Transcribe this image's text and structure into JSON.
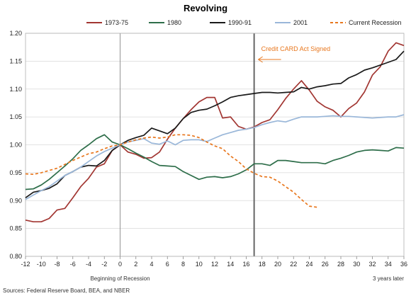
{
  "chart_data": {
    "type": "line",
    "title": "Revolving",
    "xlabel": "",
    "ylabel": "",
    "xlim": [
      -12,
      36
    ],
    "ylim": [
      0.8,
      1.2
    ],
    "x_ticks": [
      -12,
      -10,
      -8,
      -6,
      -4,
      -2,
      0,
      2,
      4,
      6,
      8,
      10,
      12,
      14,
      16,
      18,
      20,
      22,
      24,
      26,
      28,
      30,
      32,
      34,
      36
    ],
    "y_ticks": [
      0.8,
      0.85,
      0.9,
      0.95,
      1.0,
      1.05,
      1.1,
      1.15,
      1.2
    ],
    "y_tick_labels": [
      "0.80",
      "0.85",
      "0.90",
      "0.95",
      "1.00",
      "1.05",
      "1.10",
      "1.15",
      "1.20"
    ],
    "grid": "horizontal",
    "legend_position": "top",
    "x_start_note": "Beginning of Recession",
    "x_end_note": "3 years later",
    "source": "Sources: Federal Reserve Board, BEA, and NBER",
    "annotation": {
      "text": "Credit CARD Act Signed",
      "x": 17,
      "color": "#e8771e"
    },
    "reference_lines": [
      {
        "x": 0,
        "color": "#888888"
      },
      {
        "x": 17,
        "color": "#666666"
      }
    ],
    "series": [
      {
        "name": "1973-75",
        "color": "#a23632",
        "style": "solid",
        "x": [
          -12,
          -11,
          -10,
          -9,
          -8,
          -7,
          -6,
          -5,
          -4,
          -3,
          -2,
          -1,
          0,
          1,
          2,
          3,
          4,
          5,
          6,
          7,
          8,
          9,
          10,
          11,
          12,
          13,
          14,
          15,
          16,
          17,
          18,
          19,
          20,
          21,
          22,
          23,
          24,
          25,
          26,
          27,
          28,
          29,
          30,
          31,
          32,
          33,
          34,
          35,
          36
        ],
        "y": [
          0.865,
          0.862,
          0.862,
          0.868,
          0.883,
          0.886,
          0.905,
          0.925,
          0.94,
          0.96,
          0.966,
          0.99,
          1.0,
          0.987,
          0.983,
          0.976,
          0.977,
          0.987,
          1.01,
          1.03,
          1.047,
          1.063,
          1.077,
          1.085,
          1.085,
          1.048,
          1.05,
          1.033,
          1.028,
          1.032,
          1.04,
          1.045,
          1.063,
          1.083,
          1.1,
          1.115,
          1.098,
          1.078,
          1.068,
          1.062,
          1.05,
          1.065,
          1.075,
          1.095,
          1.125,
          1.14,
          1.168,
          1.183,
          1.178
        ]
      },
      {
        "name": "1980",
        "color": "#2e6e4a",
        "style": "solid",
        "x": [
          -12,
          -11,
          -10,
          -9,
          -8,
          -7,
          -6,
          -5,
          -4,
          -3,
          -2,
          -1,
          0,
          1,
          2,
          3,
          4,
          5,
          6,
          7,
          8,
          9,
          10,
          11,
          12,
          13,
          14,
          15,
          16,
          17,
          18,
          19,
          20,
          21,
          22,
          23,
          24,
          25,
          26,
          27,
          28,
          29,
          30,
          31,
          32,
          33,
          34,
          35,
          36
        ],
        "y": [
          0.92,
          0.921,
          0.928,
          0.938,
          0.95,
          0.962,
          0.975,
          0.99,
          1.0,
          1.011,
          1.018,
          1.005,
          1.0,
          0.993,
          0.985,
          0.978,
          0.97,
          0.963,
          0.962,
          0.961,
          0.952,
          0.945,
          0.938,
          0.942,
          0.943,
          0.941,
          0.943,
          0.948,
          0.955,
          0.966,
          0.966,
          0.963,
          0.972,
          0.972,
          0.97,
          0.968,
          0.968,
          0.968,
          0.966,
          0.972,
          0.976,
          0.981,
          0.987,
          0.99,
          0.991,
          0.99,
          0.989,
          0.995,
          0.994
        ]
      },
      {
        "name": "1990-91",
        "color": "#1a1a1a",
        "style": "solid",
        "x": [
          -12,
          -11,
          -10,
          -9,
          -8,
          -7,
          -6,
          -5,
          -4,
          -3,
          -2,
          -1,
          0,
          1,
          2,
          3,
          4,
          5,
          6,
          7,
          8,
          9,
          10,
          11,
          12,
          13,
          14,
          15,
          16,
          17,
          18,
          19,
          20,
          21,
          22,
          23,
          24,
          25,
          26,
          27,
          28,
          29,
          30,
          31,
          32,
          33,
          34,
          35,
          36
        ],
        "y": [
          0.905,
          0.915,
          0.918,
          0.922,
          0.93,
          0.945,
          0.952,
          0.96,
          0.963,
          0.962,
          0.972,
          0.99,
          1.0,
          1.008,
          1.013,
          1.017,
          1.03,
          1.025,
          1.02,
          1.03,
          1.047,
          1.058,
          1.062,
          1.064,
          1.07,
          1.077,
          1.085,
          1.088,
          1.09,
          1.092,
          1.094,
          1.094,
          1.093,
          1.094,
          1.095,
          1.103,
          1.1,
          1.104,
          1.106,
          1.109,
          1.11,
          1.12,
          1.126,
          1.134,
          1.138,
          1.143,
          1.148,
          1.153,
          1.168
        ]
      },
      {
        "name": "2001",
        "color": "#9ab7d9",
        "style": "solid",
        "x": [
          -12,
          -11,
          -10,
          -9,
          -8,
          -7,
          -6,
          -5,
          -4,
          -3,
          -2,
          -1,
          0,
          1,
          2,
          3,
          4,
          5,
          6,
          7,
          8,
          9,
          10,
          11,
          12,
          13,
          14,
          15,
          16,
          17,
          18,
          19,
          20,
          21,
          22,
          23,
          24,
          25,
          26,
          27,
          28,
          29,
          30,
          31,
          32,
          33,
          34,
          35,
          36
        ],
        "y": [
          0.902,
          0.91,
          0.918,
          0.925,
          0.935,
          0.945,
          0.952,
          0.96,
          0.97,
          0.98,
          0.988,
          0.994,
          1.0,
          1.005,
          1.008,
          1.011,
          1.003,
          1.001,
          1.007,
          1.0,
          1.008,
          1.009,
          1.009,
          1.006,
          1.012,
          1.018,
          1.022,
          1.026,
          1.028,
          1.031,
          1.036,
          1.04,
          1.043,
          1.041,
          1.046,
          1.05,
          1.05,
          1.05,
          1.051,
          1.052,
          1.051,
          1.051,
          1.05,
          1.049,
          1.048,
          1.049,
          1.05,
          1.05,
          1.054
        ]
      },
      {
        "name": "Current Recession",
        "color": "#e8771e",
        "style": "dashed",
        "x": [
          -12,
          -11,
          -10,
          -9,
          -8,
          -7,
          -6,
          -5,
          -4,
          -3,
          -2,
          -1,
          0,
          1,
          2,
          3,
          4,
          5,
          6,
          7,
          8,
          9,
          10,
          11,
          12,
          13,
          14,
          15,
          16,
          17,
          18,
          19,
          20,
          21,
          22,
          23,
          24,
          25
        ],
        "y": [
          0.948,
          0.947,
          0.95,
          0.954,
          0.958,
          0.965,
          0.972,
          0.978,
          0.984,
          0.987,
          0.993,
          0.998,
          1.0,
          1.005,
          1.009,
          1.012,
          1.014,
          1.012,
          1.014,
          1.018,
          1.018,
          1.017,
          1.013,
          1.005,
          0.998,
          0.993,
          0.98,
          0.97,
          0.957,
          0.949,
          0.943,
          0.942,
          0.935,
          0.925,
          0.915,
          0.902,
          0.89,
          0.888
        ]
      }
    ]
  }
}
